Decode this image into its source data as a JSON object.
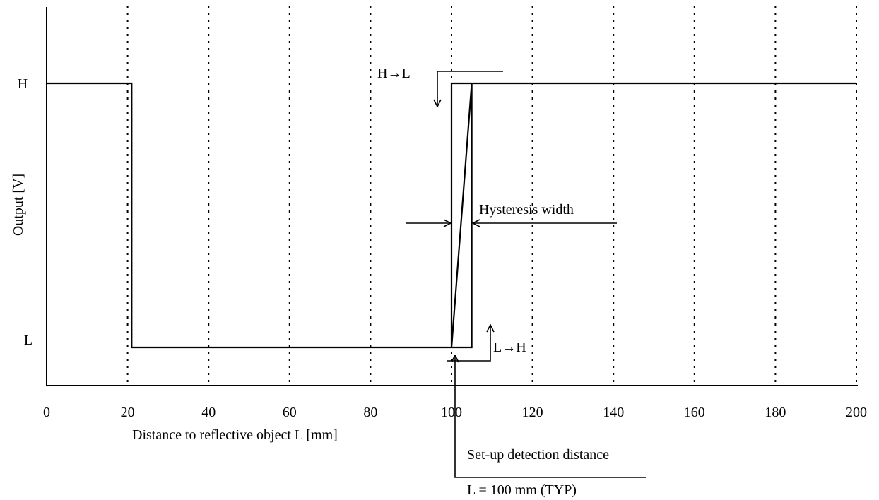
{
  "chart_data": {
    "type": "line",
    "xlabel": "Distance to reflective object  L [mm]",
    "ylabel": "Output  [V]",
    "xlim": [
      0,
      200
    ],
    "x_ticks": [
      "0",
      "20",
      "40",
      "60",
      "80",
      "100",
      "120",
      "140",
      "160",
      "180",
      "200"
    ],
    "y_levels": [
      "L",
      "H"
    ],
    "grid": "vertical dotted lines at each x tick",
    "series": [
      {
        "values": [
          {
            "x": 0,
            "y": "H"
          },
          {
            "x": 21,
            "y": "H"
          },
          {
            "x": 21,
            "y": "L"
          },
          {
            "x": 100,
            "y": "L"
          },
          {
            "x": 100,
            "y": "H"
          },
          {
            "x": 105,
            "y": "H"
          },
          {
            "x": 105,
            "y": "L"
          },
          {
            "x": 100,
            "y": "L"
          },
          {
            "x": 105,
            "y": "H"
          },
          {
            "x": 200,
            "y": "H"
          }
        ]
      }
    ],
    "annotations": {
      "h_to_l": "H→L",
      "l_to_h": "L→H",
      "hysteresis": "Hysteresis width",
      "setup_line1": "Set-up detection distance",
      "setup_line2": "L = 100 mm (TYP)"
    }
  }
}
